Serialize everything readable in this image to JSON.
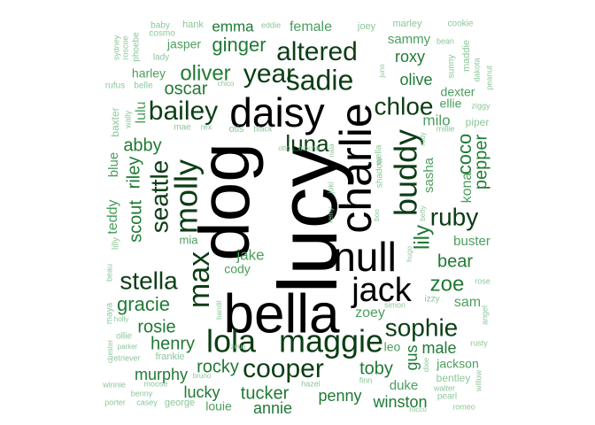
{
  "colors": {
    "largest": "#000000",
    "large": "#0b3d14",
    "medium": "#1f7a35",
    "small": "#4a9e5c",
    "tiny": "#8cc79a"
  },
  "words": [
    {
      "text": "lucy",
      "tier": "largest"
    },
    {
      "text": "dog",
      "tier": "largest"
    },
    {
      "text": "bella",
      "tier": "largest"
    },
    {
      "text": "charlie",
      "tier": "largest"
    },
    {
      "text": "daisy",
      "tier": "largest"
    },
    {
      "text": "null",
      "tier": "largest"
    },
    {
      "text": "jack",
      "tier": "largest"
    },
    {
      "text": "maggie",
      "tier": "large"
    },
    {
      "text": "lola",
      "tier": "large"
    },
    {
      "text": "buddy",
      "tier": "large"
    },
    {
      "text": "molly",
      "tier": "large"
    },
    {
      "text": "max",
      "tier": "large"
    },
    {
      "text": "sadie",
      "tier": "large"
    },
    {
      "text": "altered",
      "tier": "large"
    },
    {
      "text": "year",
      "tier": "large"
    },
    {
      "text": "bailey",
      "tier": "large"
    },
    {
      "text": "cooper",
      "tier": "large"
    },
    {
      "text": "seattle",
      "tier": "large"
    },
    {
      "text": "sophie",
      "tier": "large"
    },
    {
      "text": "stella",
      "tier": "large"
    },
    {
      "text": "ruby",
      "tier": "large"
    },
    {
      "text": "chloe",
      "tier": "large"
    },
    {
      "text": "luna",
      "tier": "large"
    },
    {
      "text": "oliver",
      "tier": "medium"
    },
    {
      "text": "ginger",
      "tier": "medium"
    },
    {
      "text": "coco",
      "tier": "medium"
    },
    {
      "text": "lily",
      "tier": "medium"
    },
    {
      "text": "zoe",
      "tier": "medium"
    },
    {
      "text": "bear",
      "tier": "medium"
    },
    {
      "text": "gracie",
      "tier": "medium"
    },
    {
      "text": "rosie",
      "tier": "medium"
    },
    {
      "text": "henry",
      "tier": "medium"
    },
    {
      "text": "rocky",
      "tier": "medium"
    },
    {
      "text": "tucker",
      "tier": "medium"
    },
    {
      "text": "toby",
      "tier": "medium"
    },
    {
      "text": "riley",
      "tier": "medium"
    },
    {
      "text": "scout",
      "tier": "medium"
    },
    {
      "text": "abby",
      "tier": "medium"
    },
    {
      "text": "oscar",
      "tier": "medium"
    },
    {
      "text": "pepper",
      "tier": "medium"
    },
    {
      "text": "roxy",
      "tier": "medium"
    },
    {
      "text": "olive",
      "tier": "medium"
    },
    {
      "text": "murphy",
      "tier": "medium"
    },
    {
      "text": "lucky",
      "tier": "medium"
    },
    {
      "text": "penny",
      "tier": "medium"
    },
    {
      "text": "annie",
      "tier": "medium"
    },
    {
      "text": "winston",
      "tier": "medium"
    },
    {
      "text": "gus",
      "tier": "medium"
    },
    {
      "text": "male",
      "tier": "medium"
    },
    {
      "text": "emma",
      "tier": "medium"
    },
    {
      "text": "female",
      "tier": "small"
    },
    {
      "text": "jake",
      "tier": "small"
    },
    {
      "text": "milo",
      "tier": "small"
    },
    {
      "text": "kona",
      "tier": "small"
    },
    {
      "text": "sam",
      "tier": "small"
    },
    {
      "text": "zoey",
      "tier": "small"
    },
    {
      "text": "lulu",
      "tier": "small"
    },
    {
      "text": "teddy",
      "tier": "small"
    },
    {
      "text": "blue",
      "tier": "small"
    },
    {
      "text": "sasha",
      "tier": "small"
    },
    {
      "text": "ellie",
      "tier": "small"
    },
    {
      "text": "buster",
      "tier": "small"
    },
    {
      "text": "dexter",
      "tier": "small"
    },
    {
      "text": "duke",
      "tier": "small"
    },
    {
      "text": "jackson",
      "tier": "small"
    },
    {
      "text": "cody",
      "tier": "small"
    },
    {
      "text": "sammy",
      "tier": "small"
    },
    {
      "text": "harley",
      "tier": "small"
    },
    {
      "text": "jasper",
      "tier": "small"
    },
    {
      "text": "louie",
      "tier": "small"
    },
    {
      "text": "leo",
      "tier": "small"
    },
    {
      "text": "mia",
      "tier": "small"
    },
    {
      "text": "wally",
      "tier": "tiny"
    },
    {
      "text": "baby",
      "tier": "tiny"
    },
    {
      "text": "hank",
      "tier": "tiny"
    },
    {
      "text": "eddie",
      "tier": "tiny"
    },
    {
      "text": "joey",
      "tier": "tiny"
    },
    {
      "text": "marley",
      "tier": "tiny"
    },
    {
      "text": "cookie",
      "tier": "tiny"
    },
    {
      "text": "cosmo",
      "tier": "tiny"
    },
    {
      "text": "sydney",
      "tier": "tiny"
    },
    {
      "text": "roscoe",
      "tier": "tiny"
    },
    {
      "text": "phoebe",
      "tier": "tiny"
    },
    {
      "text": "lady",
      "tier": "tiny"
    },
    {
      "text": "bean",
      "tier": "tiny"
    },
    {
      "text": "maddie",
      "tier": "tiny"
    },
    {
      "text": "sunny",
      "tier": "tiny"
    },
    {
      "text": "dakota",
      "tier": "tiny"
    },
    {
      "text": "peanut",
      "tier": "tiny"
    },
    {
      "text": "juno",
      "tier": "tiny"
    },
    {
      "text": "rufus",
      "tier": "tiny"
    },
    {
      "text": "belle",
      "tier": "tiny"
    },
    {
      "text": "chico",
      "tier": "tiny"
    },
    {
      "text": "ziggy",
      "tier": "tiny"
    },
    {
      "text": "baxter",
      "tier": "tiny"
    },
    {
      "text": "mae",
      "tier": "tiny"
    },
    {
      "text": "rex",
      "tier": "tiny"
    },
    {
      "text": "otis",
      "tier": "tiny"
    },
    {
      "text": "black",
      "tier": "tiny"
    },
    {
      "text": "rudy",
      "tier": "tiny"
    },
    {
      "text": "millie",
      "tier": "tiny"
    },
    {
      "text": "piper",
      "tier": "tiny"
    },
    {
      "text": "otto",
      "tier": "tiny"
    },
    {
      "text": "mocha",
      "tier": "tiny"
    },
    {
      "text": "nala",
      "tier": "tiny"
    },
    {
      "text": "wella",
      "tier": "tiny"
    },
    {
      "text": "shadow",
      "tier": "tiny"
    },
    {
      "text": "joki",
      "tier": "tiny"
    },
    {
      "text": "remy",
      "tier": "tiny"
    },
    {
      "text": "boo",
      "tier": "tiny"
    },
    {
      "text": "betty",
      "tier": "tiny"
    },
    {
      "text": "hugo",
      "tier": "tiny"
    },
    {
      "text": "izzy",
      "tier": "tiny"
    },
    {
      "text": "rose",
      "tier": "tiny"
    },
    {
      "text": "beau",
      "tier": "tiny"
    },
    {
      "text": "lilly",
      "tier": "tiny"
    },
    {
      "text": "maya",
      "tier": "tiny"
    },
    {
      "text": "holly",
      "tier": "tiny"
    },
    {
      "text": "bandit",
      "tier": "tiny"
    },
    {
      "text": "simon",
      "tier": "tiny"
    },
    {
      "text": "angel",
      "tier": "tiny"
    },
    {
      "text": "ollie",
      "tier": "tiny"
    },
    {
      "text": "parker",
      "tier": "tiny"
    },
    {
      "text": "zeus",
      "tier": "tiny"
    },
    {
      "text": "rusty",
      "tier": "tiny"
    },
    {
      "text": "chester",
      "tier": "tiny"
    },
    {
      "text": "retriever",
      "tier": "tiny"
    },
    {
      "text": "frankie",
      "tier": "tiny"
    },
    {
      "text": "bruno",
      "tier": "tiny"
    },
    {
      "text": "dixie",
      "tier": "tiny"
    },
    {
      "text": "bentley",
      "tier": "tiny"
    },
    {
      "text": "winnie",
      "tier": "tiny"
    },
    {
      "text": "moose",
      "tier": "tiny"
    },
    {
      "text": "hazel",
      "tier": "tiny"
    },
    {
      "text": "finn",
      "tier": "tiny"
    },
    {
      "text": "walter",
      "tier": "tiny"
    },
    {
      "text": "willow",
      "tier": "tiny"
    },
    {
      "text": "benny",
      "tier": "tiny"
    },
    {
      "text": "pearl",
      "tier": "tiny"
    },
    {
      "text": "porter",
      "tier": "tiny"
    },
    {
      "text": "casey",
      "tier": "tiny"
    },
    {
      "text": "george",
      "tier": "tiny"
    },
    {
      "text": "rocco",
      "tier": "tiny"
    },
    {
      "text": "romeo",
      "tier": "tiny"
    }
  ]
}
